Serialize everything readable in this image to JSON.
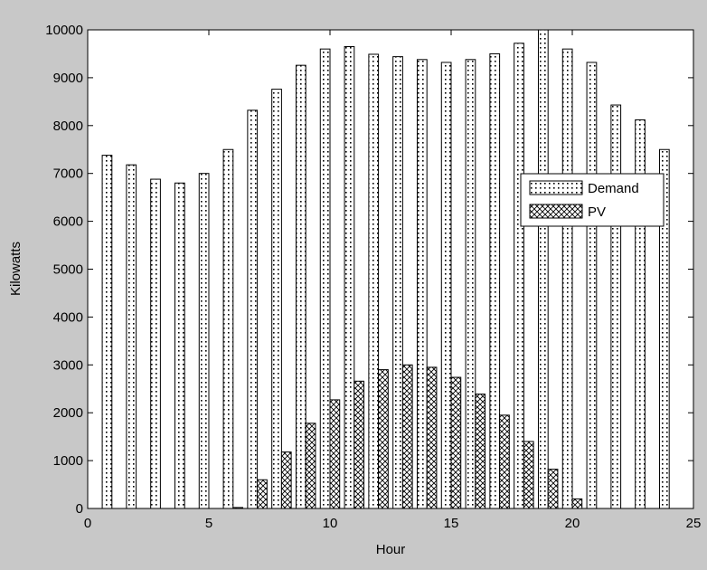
{
  "chart_data": {
    "type": "bar",
    "xlabel": "Hour",
    "ylabel": "Kilowatts",
    "xlim": [
      0,
      25
    ],
    "ylim": [
      0,
      10000
    ],
    "xticks": [
      0,
      5,
      10,
      15,
      20,
      25
    ],
    "yticks": [
      0,
      1000,
      2000,
      3000,
      4000,
      5000,
      6000,
      7000,
      8000,
      9000,
      10000
    ],
    "grid": false,
    "legend_position": "right",
    "categories": [
      1,
      2,
      3,
      4,
      5,
      6,
      7,
      8,
      9,
      10,
      11,
      12,
      13,
      14,
      15,
      16,
      17,
      18,
      19,
      20,
      21,
      22,
      23,
      24
    ],
    "series": [
      {
        "name": "Demand",
        "pattern": "dots",
        "values": [
          7380,
          7180,
          6880,
          6800,
          7000,
          7500,
          8320,
          8760,
          9260,
          9600,
          9650,
          9490,
          9440,
          9380,
          9320,
          9380,
          9500,
          9720,
          10000,
          9600,
          9320,
          8430,
          8120,
          7500
        ]
      },
      {
        "name": "PV",
        "pattern": "crosshatch",
        "values": [
          0,
          0,
          0,
          0,
          0,
          20,
          600,
          1180,
          1780,
          2270,
          2660,
          2900,
          3000,
          2950,
          2740,
          2390,
          1950,
          1400,
          820,
          200,
          0,
          0,
          0,
          0
        ]
      }
    ]
  }
}
